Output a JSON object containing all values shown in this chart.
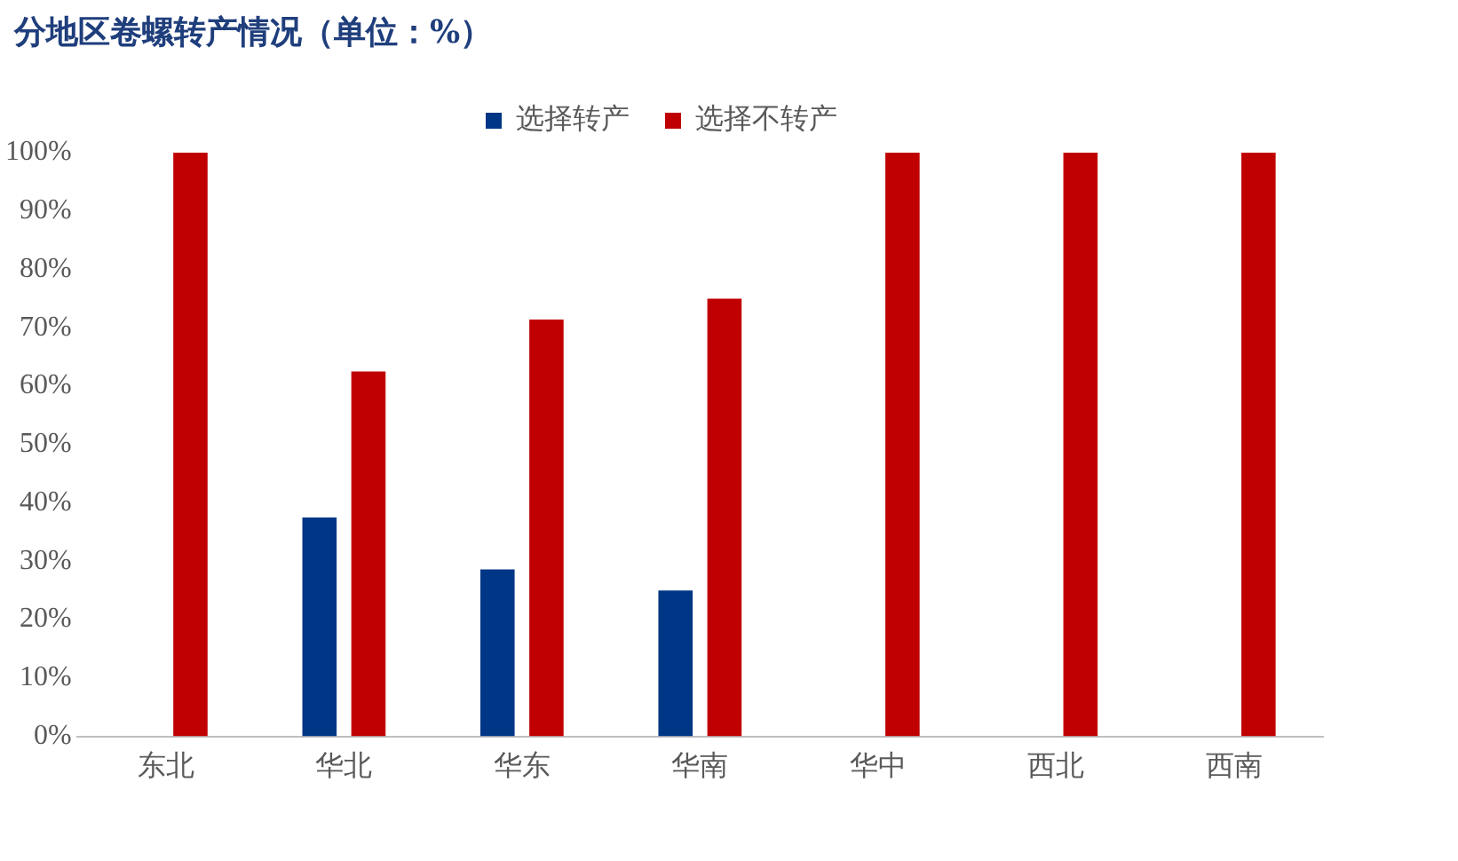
{
  "chart_data": {
    "type": "bar",
    "title": "分地区卷螺转产情况（单位：%）",
    "categories": [
      "东北",
      "华北",
      "华东",
      "华南",
      "华中",
      "西北",
      "西南"
    ],
    "series": [
      {
        "name": "选择转产",
        "color": "#003686",
        "values": [
          0,
          37.5,
          28.6,
          25,
          0,
          0,
          0
        ]
      },
      {
        "name": "选择不转产",
        "color": "#c00000",
        "values": [
          100,
          62.5,
          71.4,
          75,
          100,
          100,
          100
        ]
      }
    ],
    "ylim": [
      0,
      100
    ],
    "yticks": [
      {
        "value": 0,
        "label": "0%"
      },
      {
        "value": 10,
        "label": "10%"
      },
      {
        "value": 20,
        "label": "20%"
      },
      {
        "value": 30,
        "label": "30%"
      },
      {
        "value": 40,
        "label": "40%"
      },
      {
        "value": 50,
        "label": "50%"
      },
      {
        "value": 60,
        "label": "60%"
      },
      {
        "value": 70,
        "label": "70%"
      },
      {
        "value": 80,
        "label": "80%"
      },
      {
        "value": 90,
        "label": "90%"
      },
      {
        "value": 100,
        "label": "100%"
      }
    ],
    "grid": false,
    "legend": "top"
  }
}
